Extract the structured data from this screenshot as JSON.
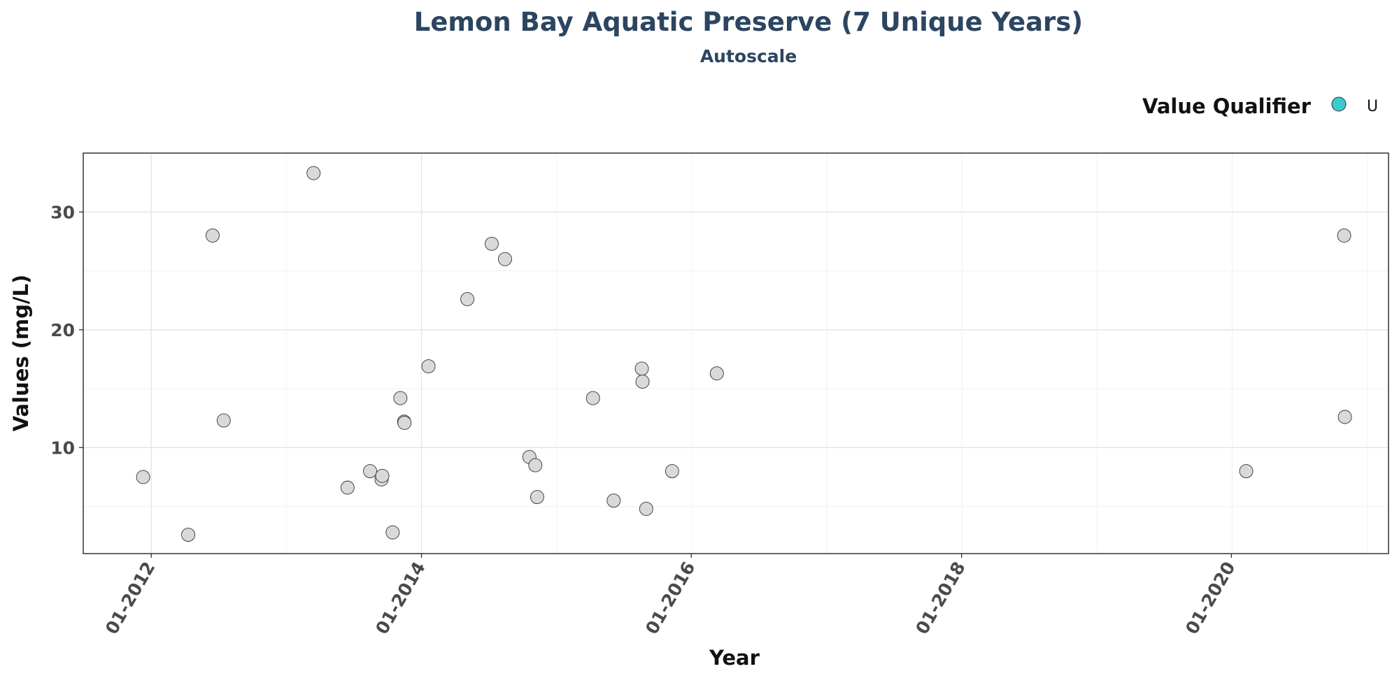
{
  "chart_data": {
    "type": "scatter",
    "title": "Lemon Bay Aquatic Preserve (7 Unique Years)",
    "subtitle": "Autoscale",
    "xlabel": "Year",
    "ylabel": "Values (mg/L)",
    "xlim": [
      "2011-07-01",
      "2021-03-01"
    ],
    "ylim": [
      1,
      35
    ],
    "x_ticks": [
      {
        "date": "2012-01-01",
        "label": "01-2012"
      },
      {
        "date": "2014-01-01",
        "label": "01-2014"
      },
      {
        "date": "2016-01-01",
        "label": "01-2016"
      },
      {
        "date": "2018-01-01",
        "label": "01-2018"
      },
      {
        "date": "2020-01-01",
        "label": "01-2020"
      }
    ],
    "y_ticks": [
      10,
      20,
      30
    ],
    "grid": true,
    "legend": {
      "title": "Value Qualifier",
      "placement": "top-right",
      "entries": [
        {
          "label": "U",
          "color": "#3ec9cc"
        }
      ]
    },
    "point_fill": "#d9d9d9",
    "point_stroke": "#333333",
    "points": [
      {
        "x": "2011-12-10",
        "y": 7.5
      },
      {
        "x": "2012-04-10",
        "y": 2.6
      },
      {
        "x": "2012-06-15",
        "y": 28.0
      },
      {
        "x": "2012-07-15",
        "y": 12.3
      },
      {
        "x": "2013-03-15",
        "y": 33.3
      },
      {
        "x": "2013-06-15",
        "y": 6.6
      },
      {
        "x": "2013-08-15",
        "y": 8.0
      },
      {
        "x": "2013-09-15",
        "y": 7.3
      },
      {
        "x": "2013-09-17",
        "y": 7.6
      },
      {
        "x": "2013-10-15",
        "y": 2.8
      },
      {
        "x": "2013-11-05",
        "y": 14.2
      },
      {
        "x": "2013-11-15",
        "y": 12.2
      },
      {
        "x": "2013-11-16",
        "y": 12.1
      },
      {
        "x": "2014-01-20",
        "y": 16.9
      },
      {
        "x": "2014-05-05",
        "y": 22.6
      },
      {
        "x": "2014-07-10",
        "y": 27.3
      },
      {
        "x": "2014-08-15",
        "y": 26.0
      },
      {
        "x": "2014-10-20",
        "y": 9.2
      },
      {
        "x": "2014-11-05",
        "y": 8.5
      },
      {
        "x": "2014-11-10",
        "y": 5.8
      },
      {
        "x": "2015-04-10",
        "y": 14.2
      },
      {
        "x": "2015-06-05",
        "y": 5.5
      },
      {
        "x": "2015-08-20",
        "y": 16.7
      },
      {
        "x": "2015-08-22",
        "y": 15.6
      },
      {
        "x": "2015-09-01",
        "y": 4.8
      },
      {
        "x": "2015-11-10",
        "y": 8.0
      },
      {
        "x": "2016-03-10",
        "y": 16.3
      },
      {
        "x": "2020-02-10",
        "y": 8.0
      },
      {
        "x": "2020-11-01",
        "y": 28.0
      },
      {
        "x": "2020-11-03",
        "y": 12.6
      }
    ]
  }
}
